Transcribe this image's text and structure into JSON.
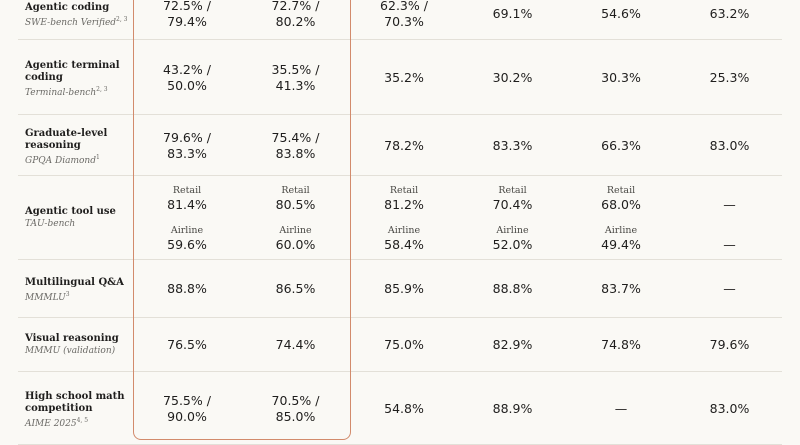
{
  "rows": [
    {
      "title_lines": [
        "Agentic coding"
      ],
      "bench": "SWE-bench Verified",
      "sup": "2, 3",
      "cells": [
        {
          "lines": [
            "72.5% /",
            "79.4%"
          ]
        },
        {
          "lines": [
            "72.7% /",
            "80.2%"
          ]
        },
        {
          "lines": [
            "62.3% /",
            "70.3%"
          ]
        },
        {
          "lines": [
            "69.1%"
          ]
        },
        {
          "lines": [
            "54.6%"
          ]
        },
        {
          "lines": [
            "63.2%"
          ]
        }
      ]
    },
    {
      "title_lines": [
        "Agentic terminal",
        "coding"
      ],
      "bench": "Terminal-bench",
      "sup": "2, 3",
      "cells": [
        {
          "lines": [
            "43.2% /",
            "50.0%"
          ]
        },
        {
          "lines": [
            "35.5% /",
            "41.3%"
          ]
        },
        {
          "lines": [
            "35.2%"
          ]
        },
        {
          "lines": [
            "30.2%"
          ]
        },
        {
          "lines": [
            "30.3%"
          ]
        },
        {
          "lines": [
            "25.3%"
          ]
        }
      ]
    },
    {
      "title_lines": [
        "Graduate-level",
        "reasoning"
      ],
      "bench": "GPQA Diamond",
      "sup": "1",
      "cells": [
        {
          "lines": [
            "79.6% /",
            "83.3%"
          ]
        },
        {
          "lines": [
            "75.4% /",
            "83.8%"
          ]
        },
        {
          "lines": [
            "78.2%"
          ]
        },
        {
          "lines": [
            "83.3%"
          ]
        },
        {
          "lines": [
            "66.3%"
          ]
        },
        {
          "lines": [
            "83.0%"
          ]
        }
      ]
    },
    {
      "title_lines": [
        "Agentic tool use"
      ],
      "bench": "TAU-bench",
      "sup": "",
      "cells": [
        {
          "retail": "81.4%",
          "airline": "59.6%"
        },
        {
          "retail": "80.5%",
          "airline": "60.0%"
        },
        {
          "retail": "81.2%",
          "airline": "58.4%"
        },
        {
          "retail": "70.4%",
          "airline": "52.0%"
        },
        {
          "retail": "68.0%",
          "airline": "49.4%"
        },
        {
          "retail": "—",
          "airline": "—",
          "nolabel": true
        }
      ],
      "retail_label": "Retail",
      "airline_label": "Airline"
    },
    {
      "title_lines": [
        "Multilingual Q&A"
      ],
      "bench": "MMMLU",
      "sup": "3",
      "cells": [
        {
          "lines": [
            "88.8%"
          ]
        },
        {
          "lines": [
            "86.5%"
          ]
        },
        {
          "lines": [
            "85.9%"
          ]
        },
        {
          "lines": [
            "88.8%"
          ]
        },
        {
          "lines": [
            "83.7%"
          ]
        },
        {
          "lines": [
            "—"
          ]
        }
      ]
    },
    {
      "title_lines": [
        "Visual reasoning"
      ],
      "bench": "MMMU (validation)",
      "sup": "",
      "cells": [
        {
          "lines": [
            "76.5%"
          ]
        },
        {
          "lines": [
            "74.4%"
          ]
        },
        {
          "lines": [
            "75.0%"
          ]
        },
        {
          "lines": [
            "82.9%"
          ]
        },
        {
          "lines": [
            "74.8%"
          ]
        },
        {
          "lines": [
            "79.6%"
          ]
        }
      ]
    },
    {
      "title_lines": [
        "High school math",
        "competition"
      ],
      "bench": "AIME 2025",
      "sup": "4, 5",
      "cells": [
        {
          "lines": [
            "75.5% /",
            "90.0%"
          ]
        },
        {
          "lines": [
            "70.5% /",
            "85.0%"
          ]
        },
        {
          "lines": [
            "54.8%"
          ]
        },
        {
          "lines": [
            "88.9%"
          ]
        },
        {
          "lines": [
            "—"
          ]
        },
        {
          "lines": [
            "83.0%"
          ]
        }
      ]
    }
  ]
}
